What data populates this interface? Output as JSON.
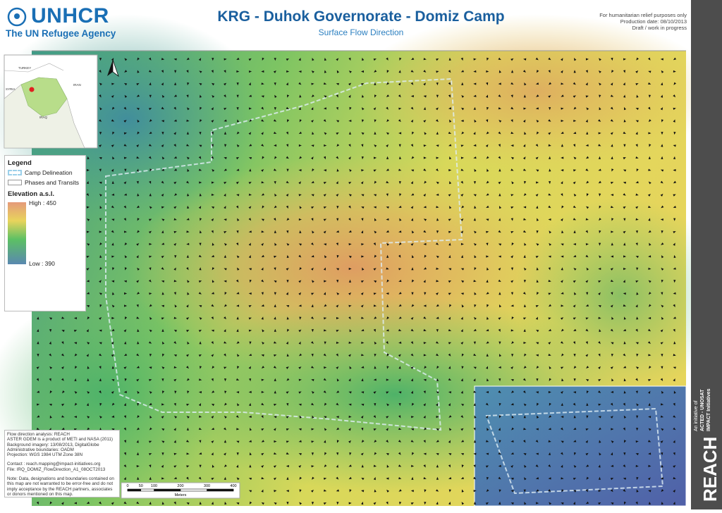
{
  "header": {
    "logo": "UNHCR",
    "logo_subtitle": "The UN Refugee Agency",
    "title": "KRG - Duhok Governorate - Domiz Camp",
    "subtitle": "Surface Flow Direction",
    "notes": [
      "For humanitarian relief purposes only",
      "Production date: 08/10/2013",
      "Draft / work in progress"
    ]
  },
  "inset_map": {
    "labels": [
      "TURKEY",
      "SYRIA",
      "IRAN",
      "IRAQ"
    ]
  },
  "legend": {
    "title": "Legend",
    "items": [
      "Camp Delineation",
      "Phases and Transits"
    ],
    "elevation_title": "Elevation a.s.l.",
    "high": "High : 450",
    "low": "Low : 390"
  },
  "info": {
    "lines": [
      "Flow direction analysis: REACH",
      "ASTER GDEM is a product of METI and NASA (2011)",
      "Background imagery: 13/08/2013, DigitalGlobe",
      "Administrative boundaries: OADM",
      "Projection: WGS 1984 UTM Zone 38N"
    ],
    "contact": [
      "Contact : reach.mapping@impact-initiatives.org",
      "File: IRQ_DOMIZ_FlowDirection_A1_08OCT2013"
    ],
    "note": "Note: Data, designations and boundaries contained on this map are not warranted to be error-free and do not imply acceptance by the REACH partners, associates or donors mentioned on this map."
  },
  "scale_bar": {
    "ticks": [
      0,
      50,
      100,
      200,
      300,
      400
    ],
    "unit": "Meters"
  },
  "sidebar": {
    "brand": "REACH",
    "lines": [
      "An initiative of",
      "ACTED - UNOSAT",
      "IMPACT Initiatives"
    ]
  }
}
